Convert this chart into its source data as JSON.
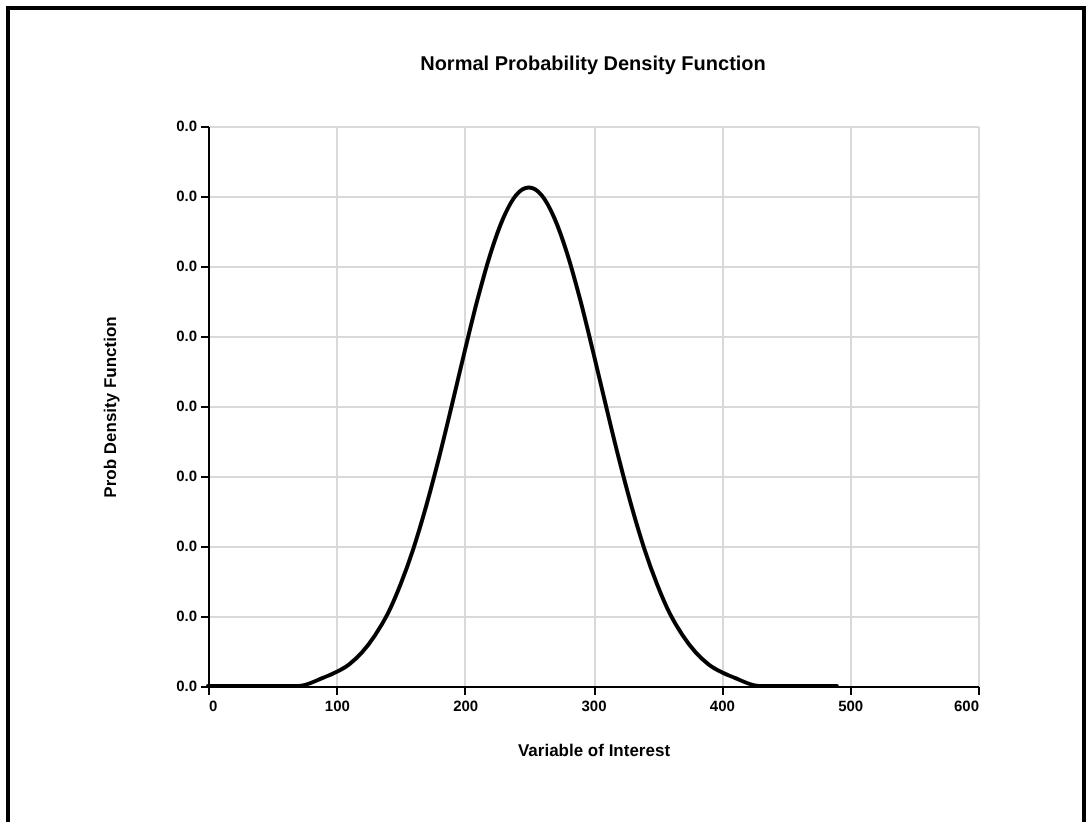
{
  "chart_data": {
    "type": "line",
    "title": "Normal Probability Density Function",
    "xlabel": "Variable of Interest",
    "ylabel": "Prob Density Function",
    "x": [
      0,
      50,
      70,
      90,
      100,
      110,
      120,
      130,
      140,
      150,
      160,
      170,
      180,
      190,
      200,
      210,
      220,
      230,
      240,
      250,
      260,
      270,
      280,
      290,
      300,
      310,
      320,
      330,
      340,
      350,
      360,
      370,
      380,
      390,
      400,
      410,
      430,
      450,
      490
    ],
    "series": [
      {
        "color": "#000000",
        "values": [
          0,
          0,
          0,
          0.00012,
          0.0002,
          0.00031,
          0.00048,
          0.00072,
          0.00103,
          0.00145,
          0.00196,
          0.00257,
          0.00326,
          0.00401,
          0.00478,
          0.00552,
          0.00617,
          0.00668,
          0.00701,
          0.00712,
          0.00701,
          0.00668,
          0.00617,
          0.00552,
          0.00478,
          0.00401,
          0.00326,
          0.00257,
          0.00196,
          0.00145,
          0.00103,
          0.00072,
          0.00048,
          0.00031,
          0.0002,
          0.00012,
          0,
          0,
          0
        ]
      }
    ],
    "xlim": [
      0,
      600
    ],
    "xticks": [
      0,
      100,
      200,
      300,
      400,
      500,
      600
    ],
    "ylim": [
      0,
      0.008
    ],
    "yticks": [
      {
        "value": 0,
        "label": "0.0"
      },
      {
        "value": 0.001,
        "label": "0.0"
      },
      {
        "value": 0.002,
        "label": "0.0"
      },
      {
        "value": 0.003,
        "label": "0.0"
      },
      {
        "value": 0.004,
        "label": "0.0"
      },
      {
        "value": 0.005,
        "label": "0.0"
      },
      {
        "value": 0.006,
        "label": "0.0"
      },
      {
        "value": 0.007,
        "label": "0.0"
      },
      {
        "value": 0.008,
        "label": "0.0"
      }
    ],
    "grid": true,
    "marker": "none",
    "line_style": "solid"
  }
}
